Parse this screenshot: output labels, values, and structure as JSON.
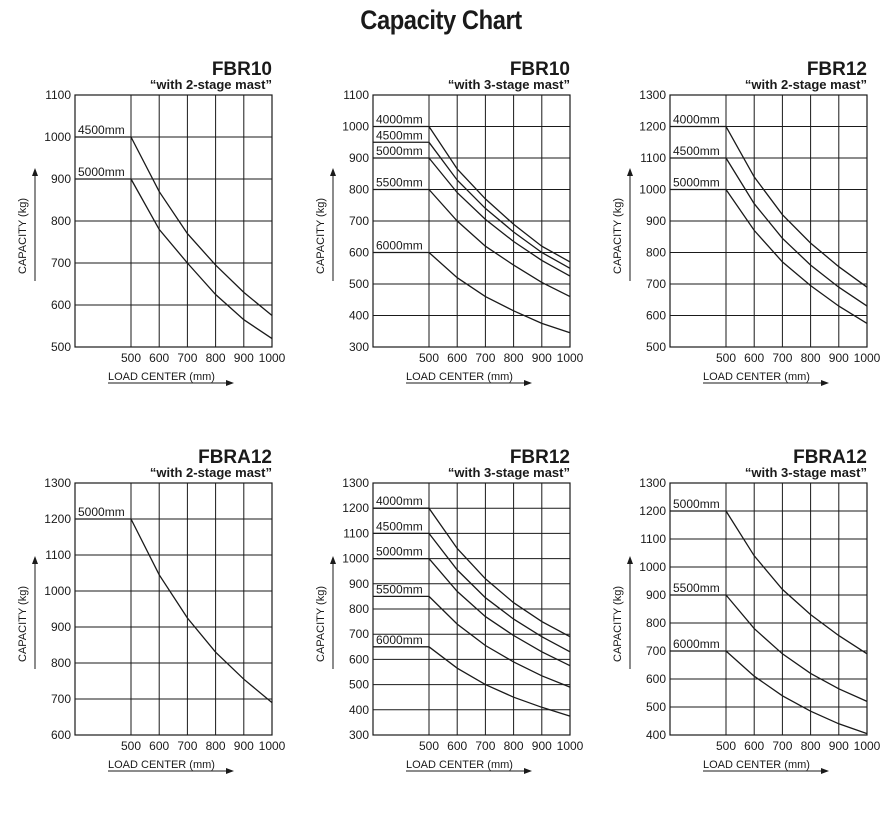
{
  "title": "Capacity Chart",
  "chart_data": [
    {
      "type": "line",
      "model": "FBR10",
      "subtitle": "“with 2-stage mast”",
      "xlabel": "LOAD CENTER (mm)",
      "ylabel": "CAPACITY (kg)",
      "x_ticks": [
        500,
        600,
        700,
        800,
        900,
        1000
      ],
      "y_ticks": [
        500,
        600,
        700,
        800,
        900,
        1000,
        1100
      ],
      "ylim": [
        500,
        1100
      ],
      "grid": true,
      "x": [
        500,
        600,
        700,
        800,
        900,
        1000
      ],
      "series": [
        {
          "name": "4500mm",
          "values": [
            1000,
            870,
            770,
            695,
            630,
            575
          ]
        },
        {
          "name": "5000mm",
          "values": [
            900,
            780,
            700,
            625,
            565,
            520
          ]
        }
      ]
    },
    {
      "type": "line",
      "model": "FBR10",
      "subtitle": "“with 3-stage mast”",
      "xlabel": "LOAD CENTER (mm)",
      "ylabel": "CAPACITY (kg)",
      "x_ticks": [
        500,
        600,
        700,
        800,
        900,
        1000
      ],
      "y_ticks": [
        300,
        400,
        500,
        600,
        700,
        800,
        900,
        1000,
        1100
      ],
      "ylim": [
        300,
        1100
      ],
      "grid": true,
      "x": [
        500,
        600,
        700,
        800,
        900,
        1000
      ],
      "series": [
        {
          "name": "4000mm",
          "values": [
            1000,
            865,
            770,
            690,
            620,
            570
          ]
        },
        {
          "name": "4500mm",
          "values": [
            950,
            830,
            740,
            665,
            600,
            550
          ]
        },
        {
          "name": "5000mm",
          "values": [
            900,
            790,
            705,
            635,
            575,
            525
          ]
        },
        {
          "name": "5500mm",
          "values": [
            800,
            700,
            620,
            560,
            505,
            460
          ]
        },
        {
          "name": "6000mm",
          "values": [
            600,
            520,
            460,
            415,
            375,
            345
          ]
        }
      ]
    },
    {
      "type": "line",
      "model": "FBR12",
      "subtitle": "“with 2-stage mast”",
      "xlabel": "LOAD CENTER (mm)",
      "ylabel": "CAPACITY (kg)",
      "x_ticks": [
        500,
        600,
        700,
        800,
        900,
        1000
      ],
      "y_ticks": [
        500,
        600,
        700,
        800,
        900,
        1000,
        1100,
        1200,
        1300
      ],
      "ylim": [
        500,
        1300
      ],
      "grid": true,
      "x": [
        500,
        600,
        700,
        800,
        900,
        1000
      ],
      "series": [
        {
          "name": "4000mm",
          "values": [
            1200,
            1040,
            920,
            830,
            755,
            690
          ]
        },
        {
          "name": "4500mm",
          "values": [
            1100,
            955,
            845,
            760,
            690,
            630
          ]
        },
        {
          "name": "5000mm",
          "values": [
            1000,
            870,
            770,
            695,
            630,
            575
          ]
        }
      ]
    },
    {
      "type": "line",
      "model": "FBRA12",
      "subtitle": "“with 2-stage mast”",
      "xlabel": "LOAD CENTER (mm)",
      "ylabel": "CAPACITY (kg)",
      "x_ticks": [
        500,
        600,
        700,
        800,
        900,
        1000
      ],
      "y_ticks": [
        600,
        700,
        800,
        900,
        1000,
        1100,
        1200,
        1300
      ],
      "ylim": [
        600,
        1300
      ],
      "grid": true,
      "x": [
        500,
        600,
        700,
        800,
        900,
        1000
      ],
      "series": [
        {
          "name": "5000mm",
          "values": [
            1200,
            1045,
            925,
            830,
            755,
            690
          ]
        }
      ]
    },
    {
      "type": "line",
      "model": "FBR12",
      "subtitle": "“with 3-stage mast”",
      "xlabel": "LOAD CENTER (mm)",
      "ylabel": "CAPACITY (kg)",
      "x_ticks": [
        500,
        600,
        700,
        800,
        900,
        1000
      ],
      "y_ticks": [
        300,
        400,
        500,
        600,
        700,
        800,
        900,
        1000,
        1100,
        1200,
        1300
      ],
      "ylim": [
        300,
        1300
      ],
      "grid": true,
      "x": [
        500,
        600,
        700,
        800,
        900,
        1000
      ],
      "series": [
        {
          "name": "4000mm",
          "values": [
            1200,
            1040,
            920,
            825,
            750,
            690
          ]
        },
        {
          "name": "4500mm",
          "values": [
            1100,
            955,
            845,
            760,
            690,
            630
          ]
        },
        {
          "name": "5000mm",
          "values": [
            1000,
            870,
            770,
            695,
            630,
            575
          ]
        },
        {
          "name": "5500mm",
          "values": [
            850,
            740,
            655,
            590,
            535,
            490
          ]
        },
        {
          "name": "6000mm",
          "values": [
            650,
            565,
            500,
            450,
            410,
            375
          ]
        }
      ]
    },
    {
      "type": "line",
      "model": "FBRA12",
      "subtitle": "“with 3-stage mast”",
      "xlabel": "LOAD CENTER (mm)",
      "ylabel": "CAPACITY (kg)",
      "x_ticks": [
        500,
        600,
        700,
        800,
        900,
        1000
      ],
      "y_ticks": [
        400,
        500,
        600,
        700,
        800,
        900,
        1000,
        1100,
        1200,
        1300
      ],
      "ylim": [
        400,
        1300
      ],
      "grid": true,
      "x": [
        500,
        600,
        700,
        800,
        900,
        1000
      ],
      "series": [
        {
          "name": "5000mm",
          "values": [
            1200,
            1040,
            920,
            830,
            755,
            690
          ]
        },
        {
          "name": "5500mm",
          "values": [
            900,
            780,
            690,
            620,
            565,
            520
          ]
        },
        {
          "name": "6000mm",
          "values": [
            700,
            610,
            540,
            485,
            440,
            405
          ]
        }
      ]
    }
  ]
}
